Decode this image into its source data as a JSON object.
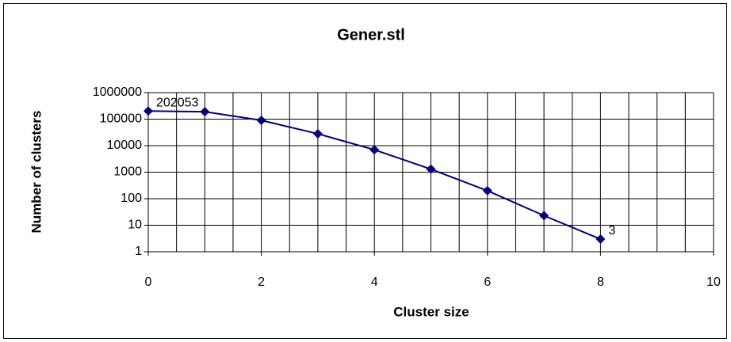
{
  "chart_data": {
    "type": "line",
    "title": "Gener.stl",
    "xlabel": "Cluster size",
    "ylabel": "Number of clusters",
    "x": [
      0,
      1,
      2,
      3,
      4,
      5,
      6,
      7,
      8
    ],
    "series": [
      {
        "name": "Gener.stl",
        "color": "#000080",
        "values": [
          202053,
          190000,
          90000,
          28000,
          7000,
          1300,
          200,
          23,
          3
        ],
        "value_labels": [
          "202053",
          null,
          null,
          null,
          null,
          null,
          null,
          null,
          "3"
        ]
      }
    ],
    "xlim": [
      0,
      10
    ],
    "xticks": [
      0,
      2,
      4,
      6,
      8,
      10
    ],
    "xgrid_step": 0.5,
    "ylim": [
      1,
      1000000
    ],
    "yticks": [
      1,
      10,
      100,
      1000,
      10000,
      100000,
      1000000
    ],
    "yscale": "log",
    "grid": true,
    "legend": false
  }
}
